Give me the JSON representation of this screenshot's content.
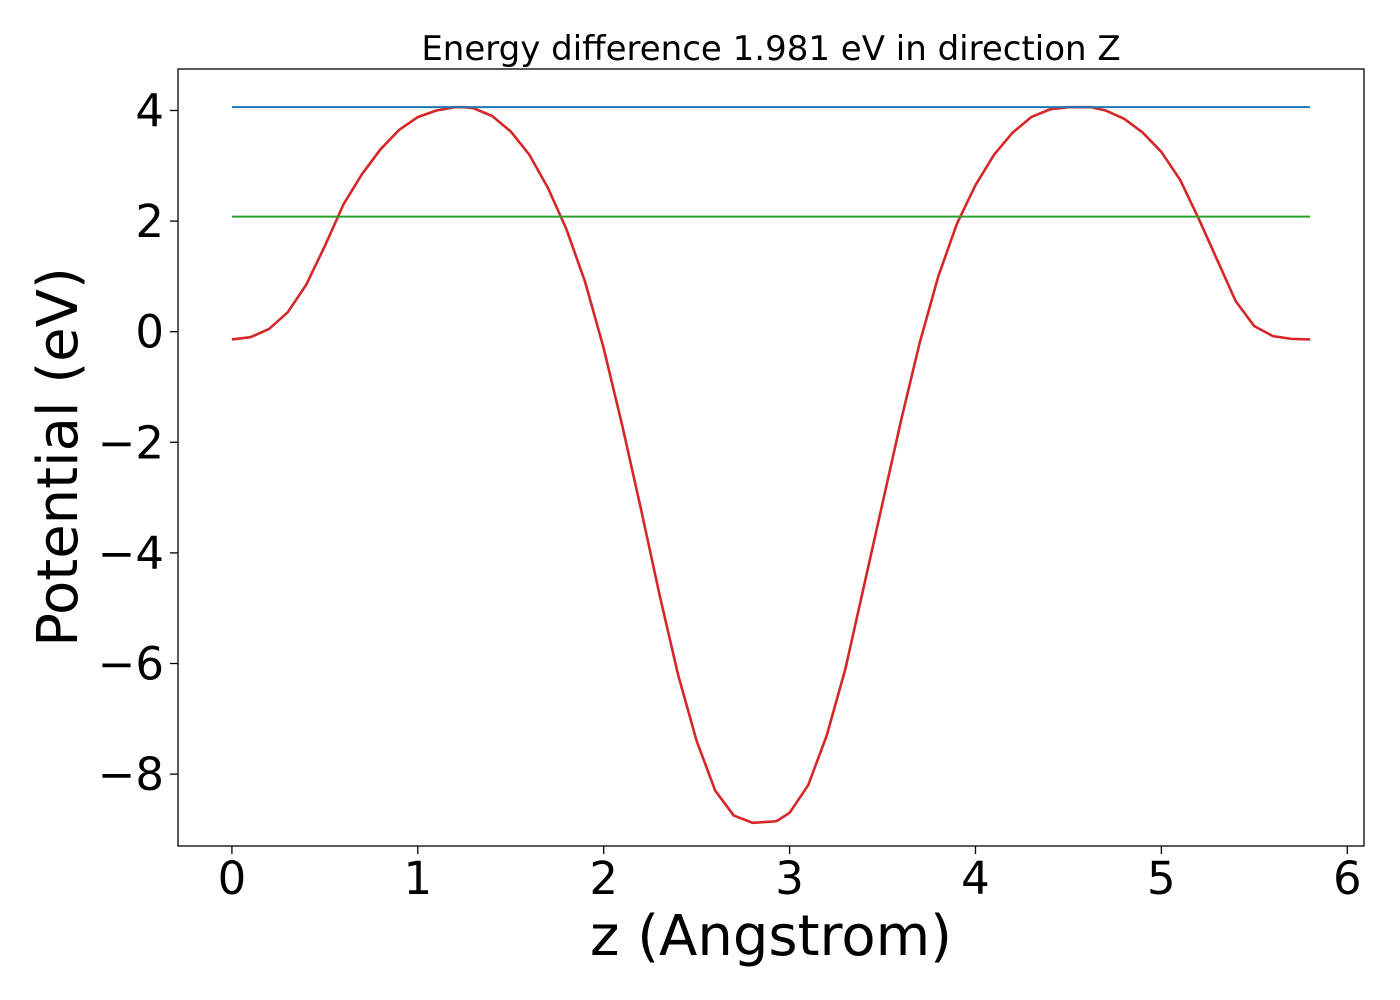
{
  "chart_data": {
    "type": "line",
    "title": "Energy difference 1.981 eV in direction Z",
    "xlabel": "z (Angstrom)",
    "ylabel": "Potential (eV)",
    "xlim": [
      -0.29,
      6.09
    ],
    "ylim": [
      -9.3,
      4.75
    ],
    "xticks": [
      0,
      1,
      2,
      3,
      4,
      5,
      6
    ],
    "xtick_labels": [
      "0",
      "1",
      "2",
      "3",
      "4",
      "5",
      "6"
    ],
    "yticks": [
      4,
      2,
      0,
      -2,
      -4,
      -6,
      -8
    ],
    "ytick_labels": [
      "4",
      "2",
      "0",
      "−2",
      "−4",
      "−6",
      "−8"
    ],
    "grid": false,
    "series": [
      {
        "color": "#d62728",
        "x": [
          0,
          0.1,
          0.2,
          0.3,
          0.4,
          0.5,
          0.6,
          0.7,
          0.8,
          0.9,
          1.0,
          1.1,
          1.2,
          1.25,
          1.3,
          1.4,
          1.5,
          1.6,
          1.7,
          1.8,
          1.9,
          2.0,
          2.1,
          2.2,
          2.3,
          2.4,
          2.5,
          2.6,
          2.7,
          2.8,
          2.9,
          2.93,
          3.0,
          3.1,
          3.2,
          3.3,
          3.4,
          3.5,
          3.6,
          3.7,
          3.8,
          3.9,
          4.0,
          4.1,
          4.2,
          4.3,
          4.4,
          4.5,
          4.6,
          4.62,
          4.7,
          4.8,
          4.9,
          5.0,
          5.1,
          5.2,
          5.3,
          5.4,
          5.5,
          5.6,
          5.7,
          5.8
        ],
        "y": [
          -0.14,
          -0.1,
          0.05,
          0.35,
          0.85,
          1.55,
          2.3,
          2.85,
          3.3,
          3.65,
          3.88,
          4.0,
          4.06,
          4.06,
          4.04,
          3.9,
          3.62,
          3.2,
          2.6,
          1.85,
          0.9,
          -0.3,
          -1.7,
          -3.2,
          -4.75,
          -6.2,
          -7.4,
          -8.3,
          -8.75,
          -8.88,
          -8.86,
          -8.85,
          -8.7,
          -8.2,
          -7.3,
          -6.1,
          -4.6,
          -3.1,
          -1.6,
          -0.2,
          1.0,
          1.95,
          2.65,
          3.2,
          3.6,
          3.88,
          4.02,
          4.06,
          4.06,
          4.06,
          4.0,
          3.85,
          3.6,
          3.25,
          2.75,
          2.05,
          1.3,
          0.55,
          0.1,
          -0.08,
          -0.13,
          -0.14
        ]
      },
      {
        "color": "#1f77b4",
        "x": [
          0,
          5.8
        ],
        "y": [
          4.06,
          4.06
        ]
      },
      {
        "color": "#2ca02c",
        "x": [
          0,
          5.8
        ],
        "y": [
          2.08,
          2.08
        ]
      }
    ]
  }
}
